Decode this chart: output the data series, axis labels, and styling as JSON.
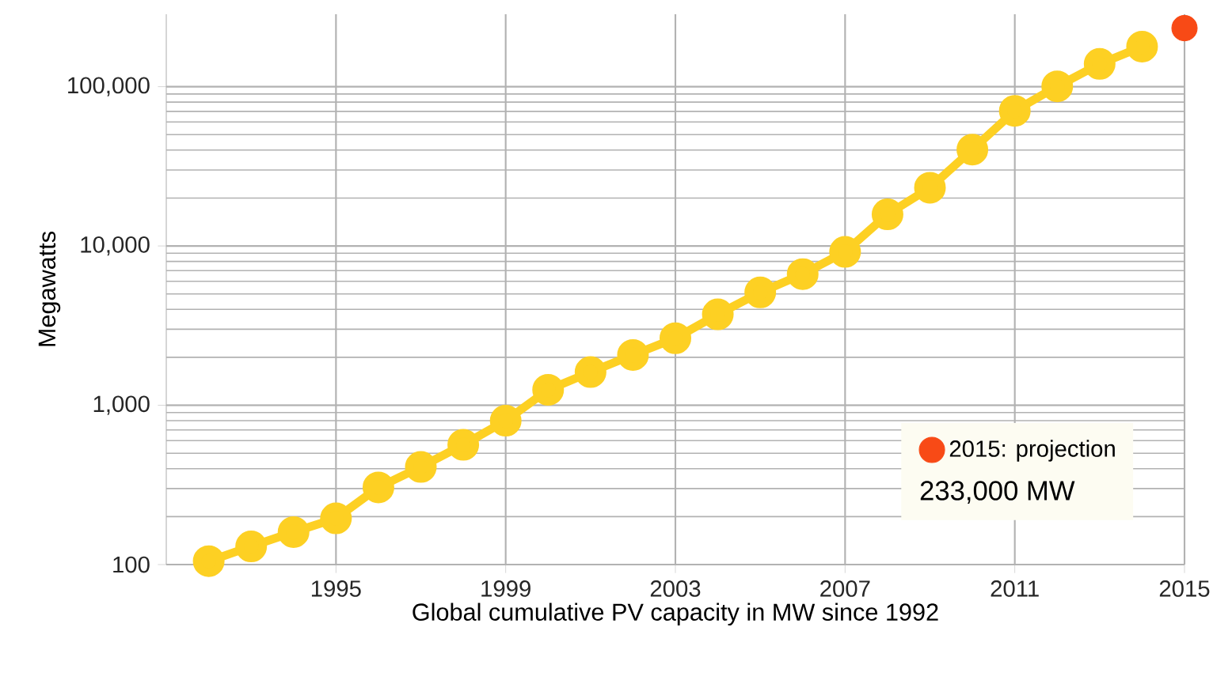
{
  "chart_data": {
    "type": "line",
    "xlabel": "Global cumulative PV capacity in MW since 1992",
    "ylabel": "Megawatts",
    "annotations": [
      "233,000 MW"
    ],
    "log": "y",
    "grid": true,
    "legend": "bottom right",
    "marker": "circle",
    "line_style": "solid",
    "xlim": [
      1991,
      2015
    ],
    "xticks": [
      1995,
      1999,
      2003,
      2007,
      2011,
      2015
    ],
    "ylim": [
      100,
      285000
    ],
    "yticks": [
      100,
      {
        "value": 1000,
        "label": "1,000"
      },
      {
        "value": 10000,
        "label": "10,000"
      },
      {
        "value": 100000,
        "label": "100,000"
      }
    ],
    "series": [
      {
        "color": "#fdd023",
        "x": [
          1992,
          1993,
          1994,
          1995,
          1996,
          1997,
          1998,
          1999,
          2000,
          2001,
          2002,
          2003,
          2004,
          2005,
          2006,
          2007,
          2008,
          2009,
          2010,
          2011,
          2012,
          2013,
          2014
        ],
        "values": [
          105,
          130,
          160,
          195,
          305,
          410,
          565,
          800,
          1250,
          1615,
          2070,
          2635,
          3720,
          5110,
          6660,
          9180,
          15800,
          23200,
          40300,
          70500,
          100500,
          138900,
          178400
        ]
      },
      {
        "name": "2015: projection",
        "type": "scatter",
        "color": "#f84a16",
        "x": [
          2015
        ],
        "values": [
          233000
        ]
      }
    ]
  }
}
